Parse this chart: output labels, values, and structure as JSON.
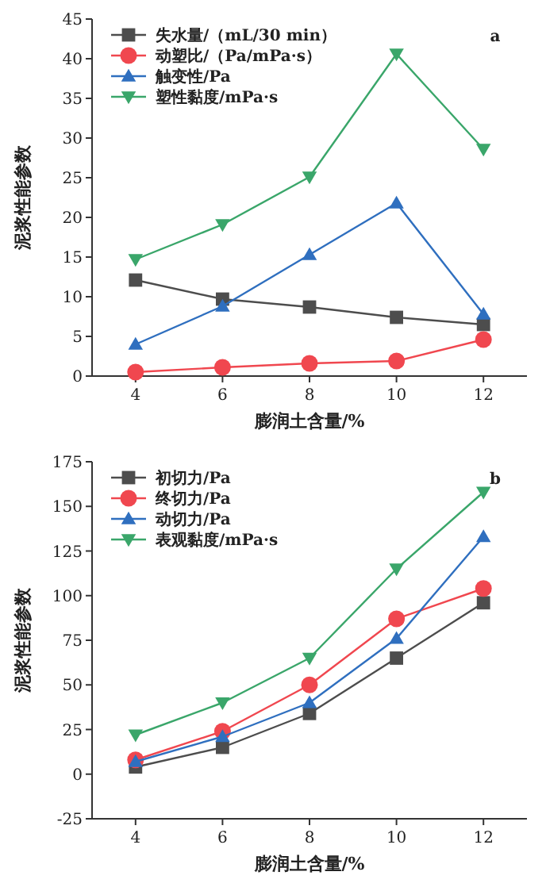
{
  "chart_data": [
    {
      "type": "line",
      "xlabel": "膨润土含量/%",
      "ylabel": "泥浆性能参数",
      "annotations": [
        "a"
      ],
      "x": [
        4,
        6,
        8,
        10,
        12
      ],
      "xlim": [
        3,
        13
      ],
      "xticks": [
        4,
        6,
        8,
        10,
        12
      ],
      "ylim": [
        0,
        45
      ],
      "yticks": [
        0,
        5,
        10,
        15,
        20,
        25,
        30,
        35,
        40,
        45
      ],
      "legend": "top left",
      "grid": false,
      "series": [
        {
          "name": "失水量/（mL/30 min）",
          "color": "#4d4d4d",
          "marker": "square",
          "values": [
            12.1,
            9.7,
            8.7,
            7.4,
            6.5
          ]
        },
        {
          "name": "动塑比/（Pa/mPa·s）",
          "color": "#f0474f",
          "marker": "circle",
          "values": [
            0.5,
            1.1,
            1.6,
            1.9,
            4.6
          ]
        },
        {
          "name": "触变性/Pa",
          "color": "#2f6fbf",
          "marker": "triangle",
          "values": [
            4.0,
            8.8,
            15.3,
            21.8,
            7.8
          ]
        },
        {
          "name": "塑性黏度/mPa·s",
          "color": "#3aa66a",
          "marker": "triangle-down",
          "values": [
            14.7,
            19.1,
            25.1,
            40.6,
            28.6
          ]
        }
      ]
    },
    {
      "type": "line",
      "xlabel": "膨润土含量/%",
      "ylabel": "泥浆性能参数",
      "annotations": [
        "b"
      ],
      "x": [
        4,
        6,
        8,
        10,
        12
      ],
      "xlim": [
        3,
        13
      ],
      "xticks": [
        4,
        6,
        8,
        10,
        12
      ],
      "ylim": [
        -25,
        175
      ],
      "yticks": [
        -25,
        0,
        25,
        50,
        75,
        100,
        125,
        150,
        175
      ],
      "legend": "top left",
      "grid": false,
      "series": [
        {
          "name": "初切力/Pa",
          "color": "#4d4d4d",
          "marker": "square",
          "values": [
            4,
            15,
            34,
            65,
            96
          ]
        },
        {
          "name": "终切力/Pa",
          "color": "#f0474f",
          "marker": "circle",
          "values": [
            8,
            24,
            50,
            87,
            104
          ]
        },
        {
          "name": "动切力/Pa",
          "color": "#2f6fbf",
          "marker": "triangle",
          "values": [
            7,
            21,
            40,
            76,
            133
          ]
        },
        {
          "name": "表观黏度/mPa·s",
          "color": "#3aa66a",
          "marker": "triangle-down",
          "values": [
            22,
            40,
            65,
            115,
            158
          ]
        }
      ]
    }
  ]
}
